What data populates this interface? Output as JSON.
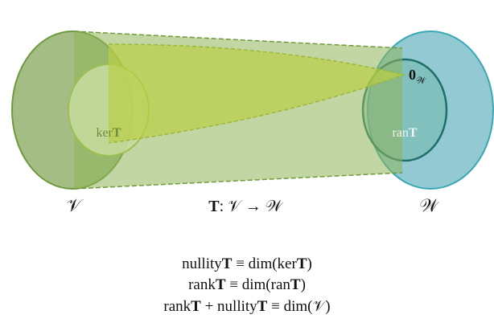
{
  "labels": {
    "kernel": [
      {
        "text": "ker"
      },
      {
        "text": "T",
        "bold": true
      }
    ],
    "range": [
      {
        "text": "ran"
      },
      {
        "text": "T",
        "bold": true
      }
    ],
    "zero": [
      {
        "text": "0",
        "bold": true
      },
      {
        "text": "𝒲",
        "sub": true
      }
    ],
    "domain": [
      {
        "text": "𝒱"
      }
    ],
    "codomain": [
      {
        "text": "𝒲"
      }
    ],
    "map": [
      {
        "text": "T",
        "bold": true
      },
      {
        "text": ": 𝒱 → 𝒲"
      }
    ]
  },
  "formulas": [
    [
      {
        "text": "nullity"
      },
      {
        "text": "T",
        "bold": true
      },
      {
        "text": " ≡ dim(ker"
      },
      {
        "text": "T",
        "bold": true
      },
      {
        "text": ")"
      }
    ],
    [
      {
        "text": "rank"
      },
      {
        "text": "T",
        "bold": true
      },
      {
        "text": " ≡ dim(ran"
      },
      {
        "text": "T",
        "bold": true
      },
      {
        "text": ")"
      }
    ],
    [
      {
        "text": "rank"
      },
      {
        "text": "T",
        "bold": true
      },
      {
        "text": " + nullity"
      },
      {
        "text": "T",
        "bold": true
      },
      {
        "text": " ≡ dim(𝒱)"
      }
    ]
  ]
}
